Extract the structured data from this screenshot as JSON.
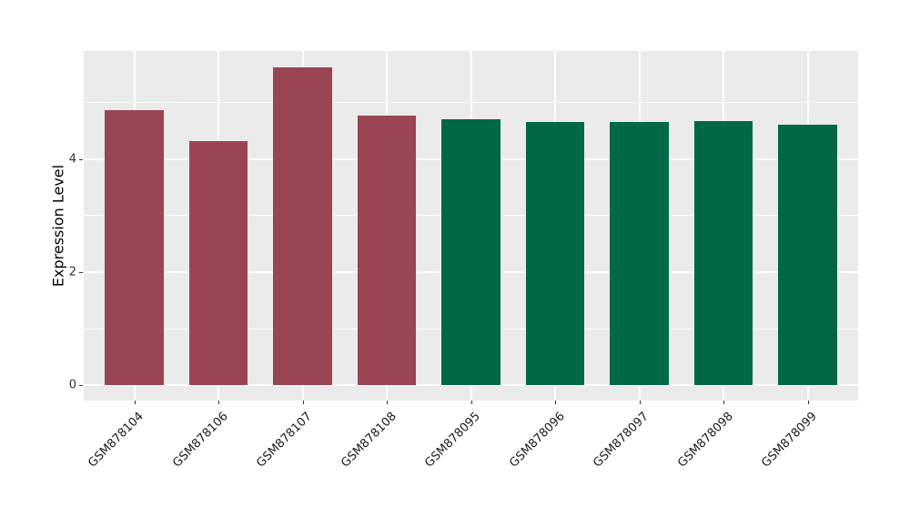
{
  "chart_data": {
    "type": "bar",
    "title": "",
    "xlabel": "",
    "ylabel": "Expression Level",
    "categories": [
      "GSM878104",
      "GSM878106",
      "GSM878107",
      "GSM878108",
      "GSM878095",
      "GSM878096",
      "GSM878097",
      "GSM878098",
      "GSM878099"
    ],
    "values": [
      4.87,
      4.31,
      5.62,
      4.77,
      4.71,
      4.66,
      4.66,
      4.67,
      4.6
    ],
    "bar_colors": [
      "#9A4553",
      "#9A4553",
      "#9A4553",
      "#9A4553",
      "#006747",
      "#006747",
      "#006747",
      "#006747",
      "#006747"
    ],
    "group_colors": {
      "left_group": "#9A4553",
      "right_group": "#006747"
    },
    "yticks": [
      0,
      2,
      4
    ],
    "minor_yticks": [
      1,
      3,
      5
    ],
    "ylim": [
      -0.27,
      5.91
    ],
    "bar_width_fraction": 0.7,
    "grid": "on",
    "legend_position": "none",
    "panel_background": "#EBEBEB",
    "grid_color": "#FFFFFF"
  }
}
